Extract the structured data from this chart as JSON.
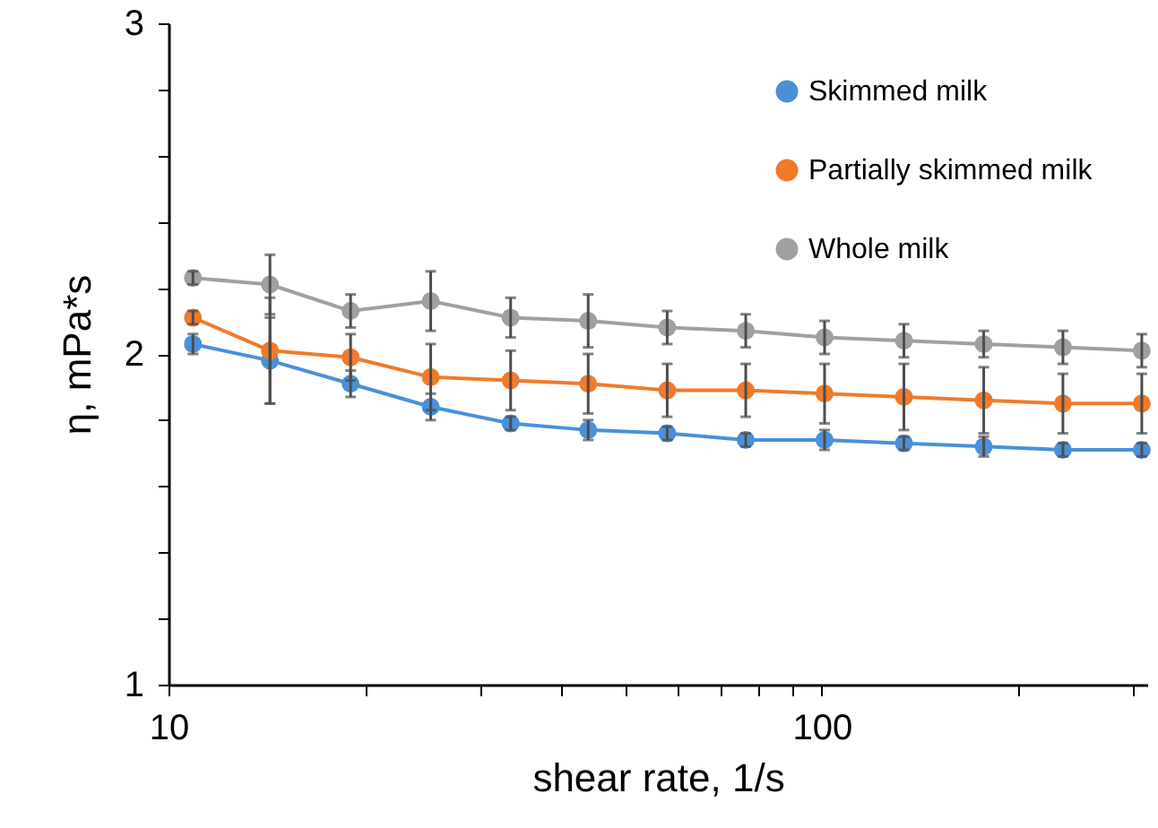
{
  "chart_data": {
    "type": "line",
    "xlabel": "shear rate, 1/s",
    "ylabel": "η, mPa*s",
    "log": "x",
    "marker": "circle",
    "line_style": "solid",
    "grid": false,
    "legend": "top right",
    "x": [
      10.9,
      14.3,
      19.0,
      25.2,
      33.4,
      43.9,
      58.0,
      76.5,
      101,
      133.6,
      177,
      234,
      309
    ],
    "xlim": [
      10,
      315
    ],
    "xticks": [
      10,
      {
        "value": 20,
        "label": null
      },
      {
        "value": 30,
        "label": null
      },
      {
        "value": 40,
        "label": null
      },
      {
        "value": 50,
        "label": null
      },
      {
        "value": 60,
        "label": null
      },
      {
        "value": 70,
        "label": null
      },
      {
        "value": 80,
        "label": null
      },
      {
        "value": 90,
        "label": null
      },
      100,
      {
        "value": 200,
        "label": null
      },
      {
        "value": 300,
        "label": null
      }
    ],
    "ylim": [
      1,
      3
    ],
    "yticks": [
      1,
      {
        "value": 1.2,
        "label": null
      },
      {
        "value": 1.4,
        "label": null
      },
      {
        "value": 1.6,
        "label": null
      },
      {
        "value": 1.8,
        "label": null
      },
      2,
      {
        "value": 2.2,
        "label": null
      },
      {
        "value": 2.4,
        "label": null
      },
      {
        "value": 2.6,
        "label": null
      },
      {
        "value": 2.8,
        "label": null
      },
      3
    ],
    "series": [
      {
        "name": "Skimmed milk",
        "color": "#4a90d9",
        "values": [
          2.03,
          1.98,
          1.91,
          1.84,
          1.79,
          1.77,
          1.76,
          1.74,
          1.74,
          1.73,
          1.72,
          1.71,
          1.71
        ],
        "errors": [
          0.03,
          0.13,
          0.04,
          0.04,
          0.02,
          0.03,
          0.02,
          0.02,
          0.03,
          0.02,
          0.03,
          0.02,
          0.02
        ]
      },
      {
        "name": "Partially skimmed milk",
        "color": "#f07a2a",
        "values": [
          2.11,
          2.01,
          1.99,
          1.93,
          1.92,
          1.91,
          1.89,
          1.89,
          1.88,
          1.87,
          1.86,
          1.85,
          1.85
        ],
        "errors": [
          0.02,
          0.16,
          0.07,
          0.1,
          0.09,
          0.09,
          0.08,
          0.08,
          0.09,
          0.1,
          0.1,
          0.09,
          0.09
        ]
      },
      {
        "name": "Whole milk",
        "color": "#a0a0a0",
        "values": [
          2.23,
          2.21,
          2.13,
          2.16,
          2.11,
          2.1,
          2.08,
          2.07,
          2.05,
          2.04,
          2.03,
          2.02,
          2.01
        ],
        "errors": [
          0.02,
          0.09,
          0.05,
          0.09,
          0.06,
          0.08,
          0.05,
          0.05,
          0.05,
          0.05,
          0.04,
          0.05,
          0.05
        ]
      }
    ]
  }
}
